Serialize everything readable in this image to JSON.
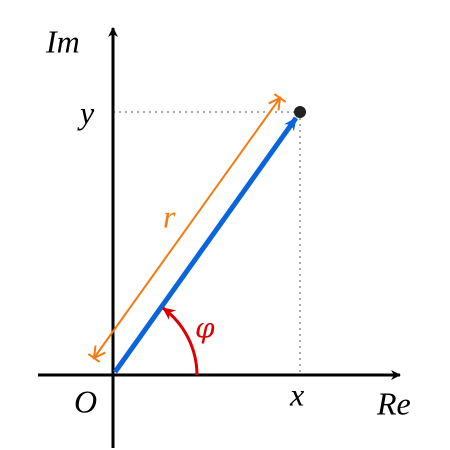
{
  "axes": {
    "real": "Re",
    "imaginary": "Im",
    "origin": "O"
  },
  "point": {
    "x_label": "x",
    "y_label": "y"
  },
  "vector": {
    "modulus": "r",
    "argument": "φ"
  }
}
